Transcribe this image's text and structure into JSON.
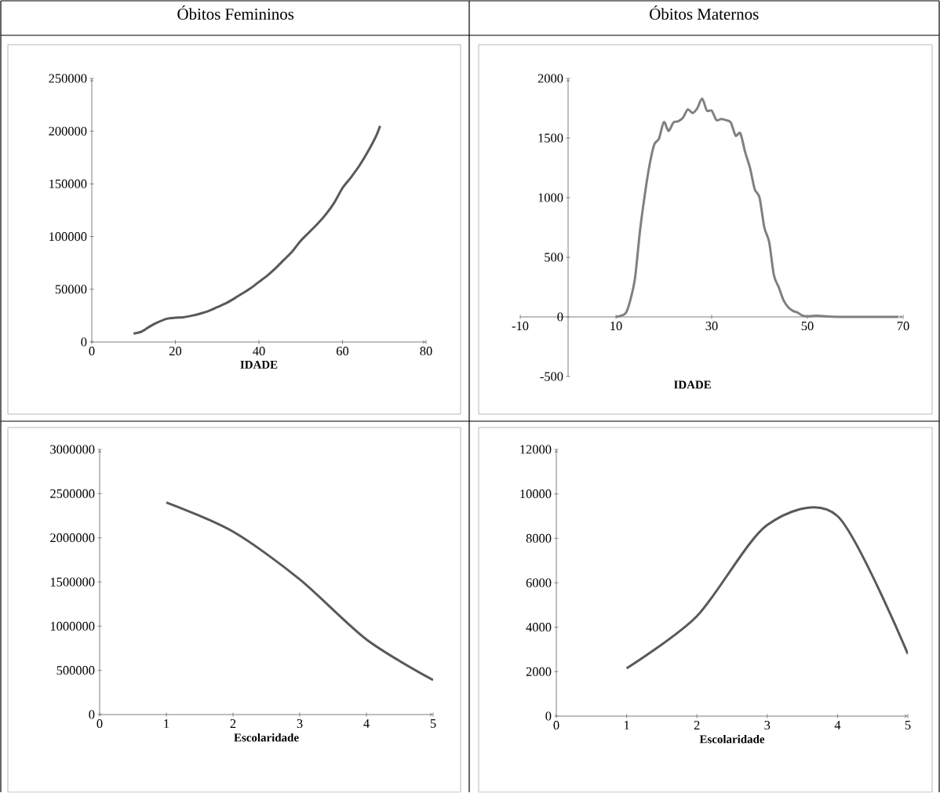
{
  "chart_data": [
    {
      "type": "line",
      "title": "Óbitos Femininos",
      "xlabel": "IDADE",
      "xlim": [
        0,
        80
      ],
      "xticks": [
        0,
        20,
        40,
        60,
        80
      ],
      "ylim": [
        0,
        250000
      ],
      "yticks": [
        0,
        50000,
        100000,
        150000,
        200000,
        250000
      ],
      "series": [
        {
          "color": "#595959",
          "x": [
            10,
            12,
            14,
            16,
            18,
            20,
            22,
            24,
            26,
            28,
            30,
            32,
            34,
            36,
            38,
            40,
            42,
            44,
            46,
            48,
            50,
            52,
            54,
            56,
            58,
            60,
            62,
            64,
            66,
            68,
            69
          ],
          "values": [
            8000,
            10000,
            15000,
            19000,
            22000,
            23000,
            23500,
            25000,
            27000,
            29500,
            33000,
            36500,
            41000,
            46000,
            51000,
            57000,
            63000,
            70000,
            78000,
            86000,
            96000,
            104000,
            112000,
            121000,
            132000,
            146000,
            156000,
            167000,
            180000,
            195000,
            205000
          ]
        }
      ]
    },
    {
      "type": "line",
      "title": "Óbitos Maternos",
      "xlabel": "IDADE",
      "xlim": [
        -10,
        70
      ],
      "xticks": [
        -10,
        10,
        30,
        50,
        70
      ],
      "ylim": [
        -500,
        2000
      ],
      "yticks": [
        -500,
        0,
        500,
        1000,
        1500,
        2000
      ],
      "series": [
        {
          "color": "#808080",
          "x": [
            10,
            12,
            13,
            14,
            15,
            16,
            17,
            18,
            19,
            20,
            21,
            22,
            23,
            24,
            25,
            26,
            27,
            28,
            29,
            30,
            31,
            32,
            33,
            34,
            35,
            36,
            37,
            38,
            39,
            40,
            41,
            42,
            43,
            44,
            45,
            46,
            47,
            48,
            49,
            50,
            52,
            55,
            60,
            65,
            69
          ],
          "values": [
            0,
            30,
            140,
            330,
            714,
            1016,
            1269,
            1445,
            1496,
            1634,
            1559,
            1630,
            1640,
            1670,
            1740,
            1710,
            1750,
            1830,
            1730,
            1730,
            1650,
            1660,
            1650,
            1630,
            1520,
            1540,
            1380,
            1250,
            1070,
            1000,
            750,
            630,
            350,
            250,
            140,
            80,
            50,
            35,
            10,
            5,
            10,
            2,
            0,
            0,
            0
          ]
        }
      ]
    },
    {
      "type": "line",
      "xlabel": "Escolaridade",
      "xlim": [
        0,
        5
      ],
      "xticks": [
        0,
        1,
        2,
        3,
        4,
        5
      ],
      "ylim": [
        0,
        3000000
      ],
      "yticks": [
        0,
        500000,
        1000000,
        1500000,
        2000000,
        2500000,
        3000000
      ],
      "series": [
        {
          "color": "#595959",
          "x": [
            1,
            2,
            3,
            4,
            5
          ],
          "values": [
            2400000,
            2070000,
            1530000,
            850000,
            390000
          ]
        }
      ]
    },
    {
      "type": "line",
      "xlabel": "Escolaridade",
      "xlim": [
        0,
        5
      ],
      "xticks": [
        0,
        1,
        2,
        3,
        4,
        5
      ],
      "ylim": [
        0,
        12000
      ],
      "yticks": [
        0,
        2000,
        4000,
        6000,
        8000,
        10000,
        12000
      ],
      "series": [
        {
          "color": "#595959",
          "x": [
            1,
            2,
            3,
            4,
            5
          ],
          "values": [
            2150,
            4500,
            8600,
            9000,
            2800
          ]
        }
      ]
    }
  ]
}
